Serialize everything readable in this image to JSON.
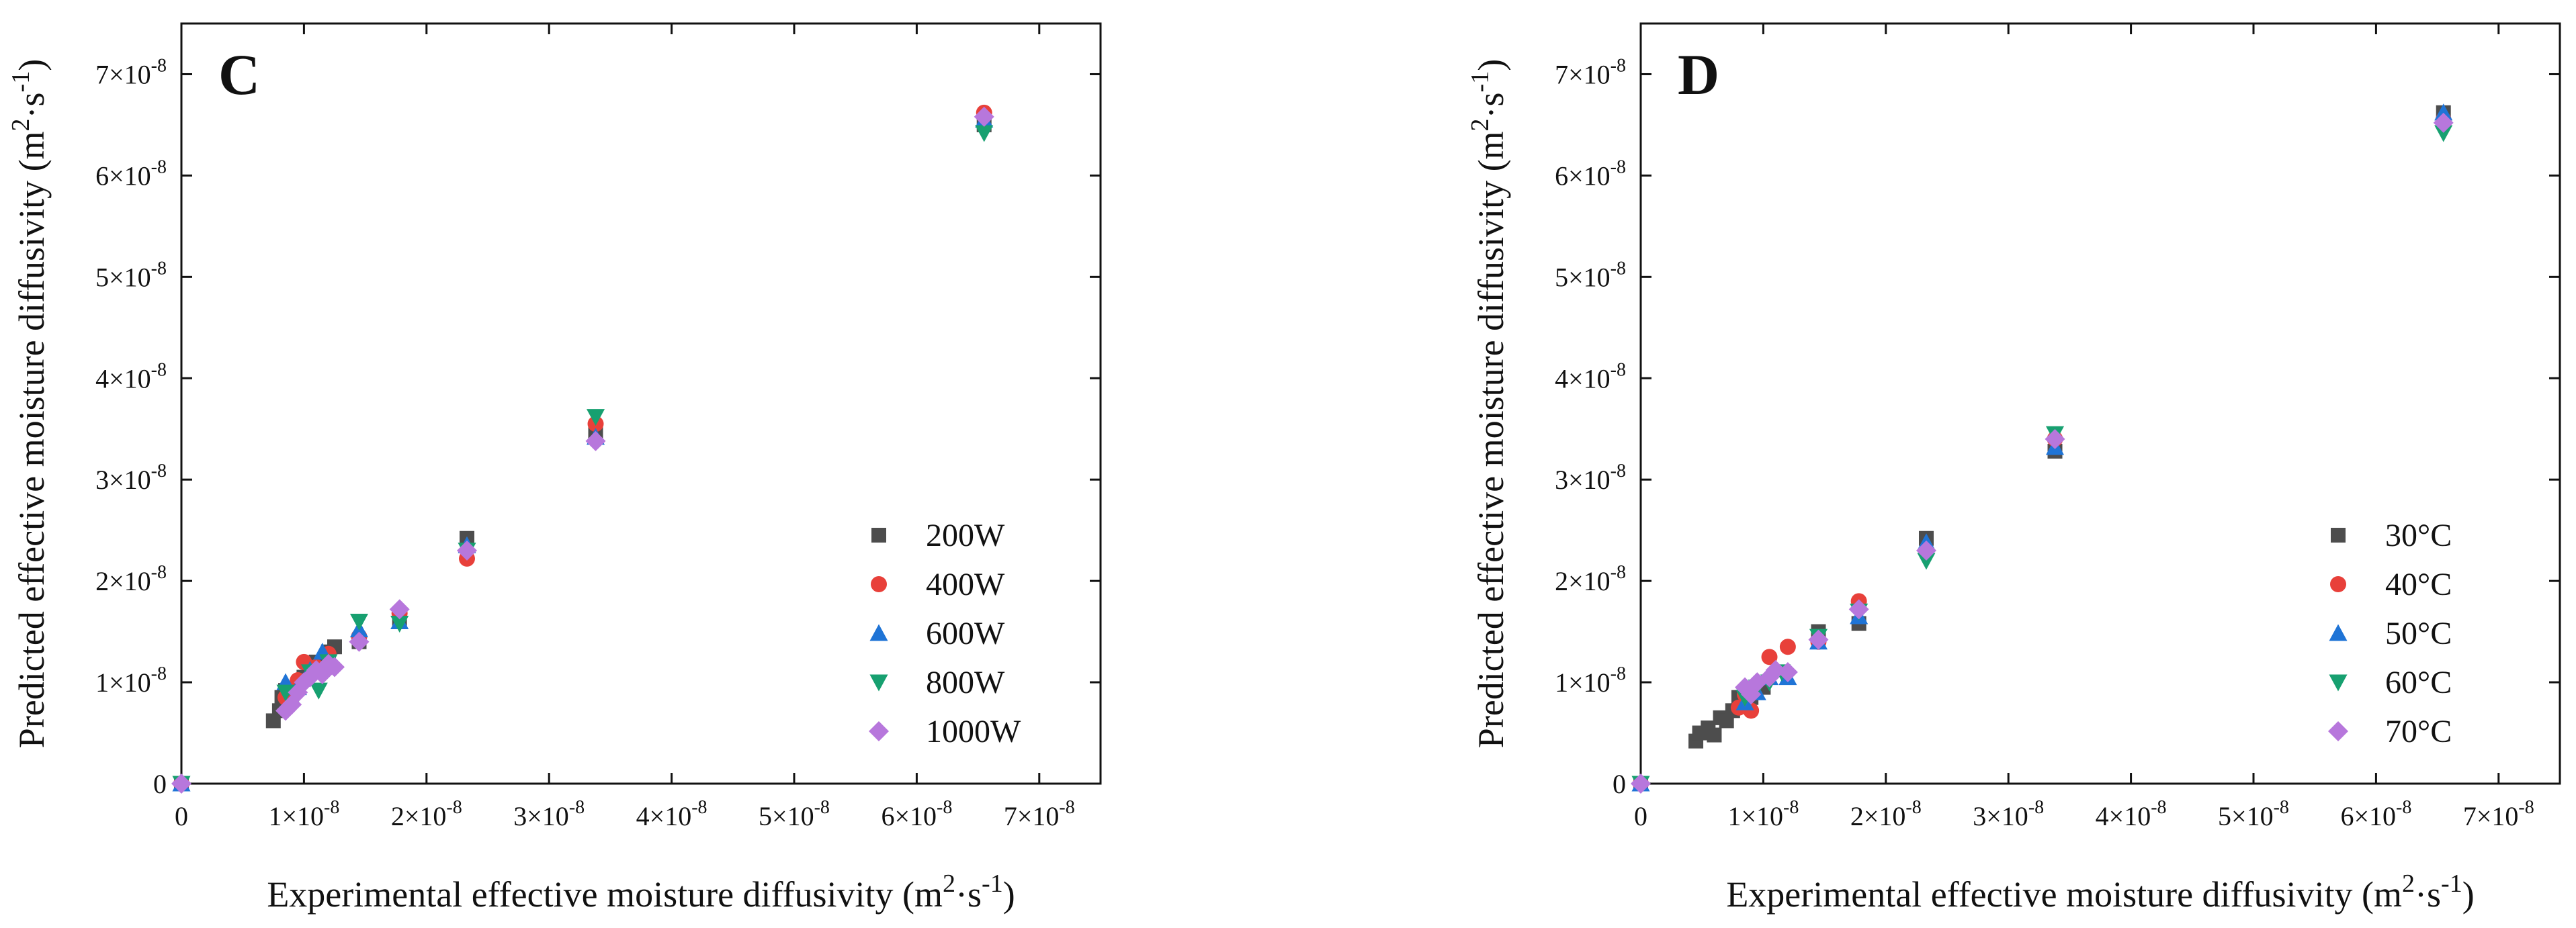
{
  "chart_data": [
    {
      "type": "scatter",
      "panel_label": "C",
      "xlabel": "Experimental effective moisture diffusivity (m2·s-1)",
      "ylabel": "Predicted effective moisture diffusivity (m2·s-1)",
      "xlabel_parts": {
        "pre": "Experimental effective moisture diffusivity (m",
        "sup1": "2",
        "mid": "·s",
        "sup2": "-1",
        "post": ")"
      },
      "ylabel_parts": {
        "pre": "Predicted effective moisture diffusivity (m",
        "sup1": "2",
        "mid": "·s",
        "sup2": "-1",
        "post": ")"
      },
      "xlim": [
        0,
        7.5e-08
      ],
      "ylim": [
        0,
        7.5e-08
      ],
      "xticks": [
        0,
        1e-08,
        2e-08,
        3e-08,
        4e-08,
        5e-08,
        6e-08,
        7e-08
      ],
      "yticks": [
        0,
        1e-08,
        2e-08,
        3e-08,
        4e-08,
        5e-08,
        6e-08,
        7e-08
      ],
      "xticklabels": [
        {
          "base": "0",
          "exp": ""
        },
        {
          "base": "1×10",
          "exp": "-8"
        },
        {
          "base": "2×10",
          "exp": "-8"
        },
        {
          "base": "3×10",
          "exp": "-8"
        },
        {
          "base": "4×10",
          "exp": "-8"
        },
        {
          "base": "5×10",
          "exp": "-8"
        },
        {
          "base": "6×10",
          "exp": "-8"
        },
        {
          "base": "7×10",
          "exp": "-8"
        }
      ],
      "yticklabels": [
        {
          "base": "0",
          "exp": ""
        },
        {
          "base": "1×10",
          "exp": "-8"
        },
        {
          "base": "2×10",
          "exp": "-8"
        },
        {
          "base": "3×10",
          "exp": "-8"
        },
        {
          "base": "4×10",
          "exp": "-8"
        },
        {
          "base": "5×10",
          "exp": "-8"
        },
        {
          "base": "6×10",
          "exp": "-8"
        },
        {
          "base": "7×10",
          "exp": "-8"
        }
      ],
      "legend_position": "lower-right",
      "series": [
        {
          "name": "200W",
          "marker": "square",
          "color": "#4d4d4d",
          "points": [
            [
              0,
              0
            ],
            [
              7.5e-09,
              6.2e-09
            ],
            [
              8e-09,
              7.2e-09
            ],
            [
              8.2e-09,
              8.5e-09
            ],
            [
              8.5e-09,
              9.2e-09
            ],
            [
              1e-08,
              1.05e-08
            ],
            [
              1.05e-08,
              1.1e-08
            ],
            [
              1.1e-08,
              1.2e-08
            ],
            [
              1.2e-08,
              1.3e-08
            ],
            [
              1.25e-08,
              1.35e-08
            ],
            [
              1.45e-08,
              1.4e-08
            ],
            [
              1.78e-08,
              1.6e-08
            ],
            [
              2.33e-08,
              2.42e-08
            ],
            [
              3.38e-08,
              3.45e-08
            ],
            [
              6.55e-08,
              6.5e-08
            ]
          ]
        },
        {
          "name": "400W",
          "marker": "circle",
          "color": "#e8403a",
          "points": [
            [
              0,
              0
            ],
            [
              8.5e-09,
              8.5e-09
            ],
            [
              9.5e-09,
              1.02e-08
            ],
            [
              1e-08,
              1.2e-08
            ],
            [
              1.1e-08,
              1.15e-08
            ],
            [
              1.2e-08,
              1.28e-08
            ],
            [
              1.45e-08,
              1.45e-08
            ],
            [
              1.78e-08,
              1.68e-08
            ],
            [
              2.33e-08,
              2.22e-08
            ],
            [
              3.38e-08,
              3.55e-08
            ],
            [
              6.55e-08,
              6.62e-08
            ]
          ]
        },
        {
          "name": "600W",
          "marker": "triangle-up",
          "color": "#1f74d6",
          "points": [
            [
              0,
              0
            ],
            [
              8.5e-09,
              1e-08
            ],
            [
              9.5e-09,
              9.5e-09
            ],
            [
              1.05e-08,
              1.12e-08
            ],
            [
              1.15e-08,
              1.3e-08
            ],
            [
              1.45e-08,
              1.52e-08
            ],
            [
              1.78e-08,
              1.6e-08
            ],
            [
              2.33e-08,
              2.35e-08
            ],
            [
              3.38e-08,
              3.42e-08
            ],
            [
              6.55e-08,
              6.55e-08
            ]
          ]
        },
        {
          "name": "800W",
          "marker": "triangle-down",
          "color": "#17a070",
          "points": [
            [
              0,
              0
            ],
            [
              8.5e-09,
              9e-09
            ],
            [
              9.5e-09,
              8.8e-09
            ],
            [
              1.05e-08,
              1.1e-08
            ],
            [
              1.12e-08,
              9.2e-09
            ],
            [
              1.2e-08,
              1.2e-08
            ],
            [
              1.45e-08,
              1.6e-08
            ],
            [
              1.78e-08,
              1.58e-08
            ],
            [
              2.33e-08,
              2.3e-08
            ],
            [
              3.38e-08,
              3.62e-08
            ],
            [
              6.55e-08,
              6.42e-08
            ]
          ]
        },
        {
          "name": "1000W",
          "marker": "diamond",
          "color": "#b777dc",
          "points": [
            [
              0,
              0
            ],
            [
              8.5e-09,
              7.2e-09
            ],
            [
              9e-09,
              7.8e-09
            ],
            [
              9.5e-09,
              9e-09
            ],
            [
              1e-08,
              1e-08
            ],
            [
              1.05e-08,
              1.05e-08
            ],
            [
              1.1e-08,
              1.12e-08
            ],
            [
              1.15e-08,
              1.08e-08
            ],
            [
              1.2e-08,
              1.18e-08
            ],
            [
              1.25e-08,
              1.15e-08
            ],
            [
              1.45e-08,
              1.4e-08
            ],
            [
              1.78e-08,
              1.72e-08
            ],
            [
              2.33e-08,
              2.3e-08
            ],
            [
              3.38e-08,
              3.38e-08
            ],
            [
              6.55e-08,
              6.58e-08
            ]
          ]
        }
      ]
    },
    {
      "type": "scatter",
      "panel_label": "D",
      "xlabel": "Experimental effective moisture diffusivity (m2·s-1)",
      "ylabel": "Predicted effective moisture diffusivity (m2·s-1)",
      "xlabel_parts": {
        "pre": "Experimental effective moisture diffusivity (m",
        "sup1": "2",
        "mid": "·s",
        "sup2": "-1",
        "post": ")"
      },
      "ylabel_parts": {
        "pre": "Predicted effective moisture diffusivity (m",
        "sup1": "2",
        "mid": "·s",
        "sup2": "-1",
        "post": ")"
      },
      "xlim": [
        0,
        7.5e-08
      ],
      "ylim": [
        0,
        7.5e-08
      ],
      "xticks": [
        0,
        1e-08,
        2e-08,
        3e-08,
        4e-08,
        5e-08,
        6e-08,
        7e-08
      ],
      "yticks": [
        0,
        1e-08,
        2e-08,
        3e-08,
        4e-08,
        5e-08,
        6e-08,
        7e-08
      ],
      "xticklabels": [
        {
          "base": "0",
          "exp": ""
        },
        {
          "base": "1×10",
          "exp": "-8"
        },
        {
          "base": "2×10",
          "exp": "-8"
        },
        {
          "base": "3×10",
          "exp": "-8"
        },
        {
          "base": "4×10",
          "exp": "-8"
        },
        {
          "base": "5×10",
          "exp": "-8"
        },
        {
          "base": "6×10",
          "exp": "-8"
        },
        {
          "base": "7×10",
          "exp": "-8"
        }
      ],
      "yticklabels": [
        {
          "base": "0",
          "exp": ""
        },
        {
          "base": "1×10",
          "exp": "-8"
        },
        {
          "base": "2×10",
          "exp": "-8"
        },
        {
          "base": "3×10",
          "exp": "-8"
        },
        {
          "base": "4×10",
          "exp": "-8"
        },
        {
          "base": "5×10",
          "exp": "-8"
        },
        {
          "base": "6×10",
          "exp": "-8"
        },
        {
          "base": "7×10",
          "exp": "-8"
        }
      ],
      "legend_position": "lower-right",
      "series": [
        {
          "name": "30°C",
          "marker": "square",
          "color": "#4d4d4d",
          "points": [
            [
              0,
              0
            ],
            [
              4.5e-09,
              4.2e-09
            ],
            [
              4.8e-09,
              5e-09
            ],
            [
              5.5e-09,
              5.5e-09
            ],
            [
              6e-09,
              4.8e-09
            ],
            [
              6.5e-09,
              6.5e-09
            ],
            [
              7e-09,
              6.2e-09
            ],
            [
              7.5e-09,
              7.2e-09
            ],
            [
              8e-09,
              8.5e-09
            ],
            [
              9e-09,
              8.5e-09
            ],
            [
              1e-08,
              9.5e-09
            ],
            [
              1.45e-08,
              1.5e-08
            ],
            [
              1.78e-08,
              1.58e-08
            ],
            [
              2.33e-08,
              2.42e-08
            ],
            [
              3.38e-08,
              3.28e-08
            ],
            [
              6.55e-08,
              6.62e-08
            ]
          ]
        },
        {
          "name": "40°C",
          "marker": "circle",
          "color": "#e8403a",
          "points": [
            [
              0,
              0
            ],
            [
              8e-09,
              7.5e-09
            ],
            [
              8.5e-09,
              8.8e-09
            ],
            [
              9e-09,
              7.2e-09
            ],
            [
              1.05e-08,
              1.25e-08
            ],
            [
              1.2e-08,
              1.35e-08
            ],
            [
              1.45e-08,
              1.4e-08
            ],
            [
              1.78e-08,
              1.8e-08
            ],
            [
              2.33e-08,
              2.3e-08
            ],
            [
              3.38e-08,
              3.4e-08
            ],
            [
              6.55e-08,
              6.55e-08
            ]
          ]
        },
        {
          "name": "50°C",
          "marker": "triangle-up",
          "color": "#1f74d6",
          "points": [
            [
              0,
              0
            ],
            [
              8.5e-09,
              8e-09
            ],
            [
              9.5e-09,
              9e-09
            ],
            [
              1.05e-08,
              1.05e-08
            ],
            [
              1.2e-08,
              1.05e-08
            ],
            [
              1.45e-08,
              1.4e-08
            ],
            [
              1.78e-08,
              1.65e-08
            ],
            [
              2.33e-08,
              2.38e-08
            ],
            [
              3.38e-08,
              3.32e-08
            ],
            [
              6.55e-08,
              6.62e-08
            ]
          ]
        },
        {
          "name": "60°C",
          "marker": "triangle-down",
          "color": "#17a070",
          "points": [
            [
              0,
              0
            ],
            [
              8.5e-09,
              8.5e-09
            ],
            [
              9.5e-09,
              9.5e-09
            ],
            [
              1.05e-08,
              1e-08
            ],
            [
              1.15e-08,
              1.1e-08
            ],
            [
              1.45e-08,
              1.45e-08
            ],
            [
              1.78e-08,
              1.7e-08
            ],
            [
              2.33e-08,
              2.2e-08
            ],
            [
              3.38e-08,
              3.45e-08
            ],
            [
              6.55e-08,
              6.42e-08
            ]
          ]
        },
        {
          "name": "70°C",
          "marker": "diamond",
          "color": "#b777dc",
          "points": [
            [
              0,
              0
            ],
            [
              8.5e-09,
              9.5e-09
            ],
            [
              9e-09,
              8.8e-09
            ],
            [
              9.5e-09,
              1e-08
            ],
            [
              1.05e-08,
              1.05e-08
            ],
            [
              1.1e-08,
              1.12e-08
            ],
            [
              1.2e-08,
              1.1e-08
            ],
            [
              1.45e-08,
              1.42e-08
            ],
            [
              1.78e-08,
              1.72e-08
            ],
            [
              2.33e-08,
              2.3e-08
            ],
            [
              3.38e-08,
              3.4e-08
            ],
            [
              6.55e-08,
              6.52e-08
            ]
          ]
        }
      ]
    }
  ]
}
